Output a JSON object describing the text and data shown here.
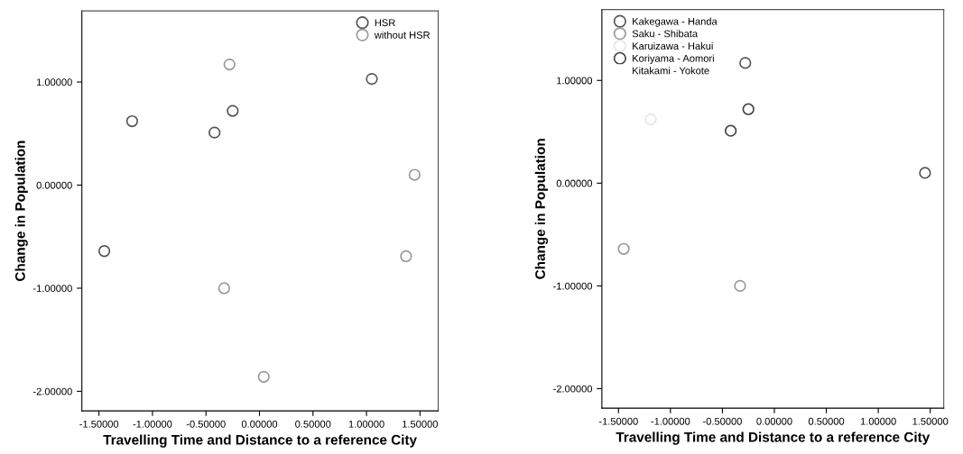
{
  "chart_data": [
    {
      "type": "scatter",
      "xlabel": "Travelling Time and Distance to a reference City",
      "ylabel": "Change in Population",
      "xlim": [
        -1.66,
        1.67
      ],
      "ylim": [
        -2.19,
        1.69
      ],
      "xticks": [
        {
          "value": -1.5,
          "label": "-1.50000"
        },
        {
          "value": -1.0,
          "label": "-1.00000"
        },
        {
          "value": -0.5,
          "label": "-0.50000"
        },
        {
          "value": 0,
          "label": "0.00000"
        },
        {
          "value": 0.5,
          "label": "0.50000"
        },
        {
          "value": 1.0,
          "label": "1.00000"
        },
        {
          "value": 1.5,
          "label": "1.50000"
        }
      ],
      "yticks": [
        {
          "value": -2.0,
          "label": "-2.00000"
        },
        {
          "value": -1.0,
          "label": "-1.00000"
        },
        {
          "value": 0,
          "label": "0.00000"
        },
        {
          "value": 1.0,
          "label": "1.00000"
        }
      ],
      "marker": "circle",
      "grid": false,
      "legend": "top right",
      "series": [
        {
          "name": "HSR",
          "color": "#555555",
          "x": [
            -1.19,
            -0.42,
            -0.25,
            1.05,
            -1.45
          ],
          "values": [
            0.62,
            0.51,
            0.72,
            1.03,
            -0.64
          ]
        },
        {
          "name": "without HSR",
          "color": "#999999",
          "x": [
            -0.28,
            1.45,
            1.37,
            -0.33,
            0.04
          ],
          "values": [
            1.17,
            0.1,
            -0.69,
            -1.0,
            -1.86
          ]
        }
      ]
    },
    {
      "type": "scatter",
      "xlabel": "Travelling Time and Distance to a reference City",
      "ylabel": "Change in Population",
      "xlim": [
        -1.66,
        1.63
      ],
      "ylim": [
        -2.19,
        1.69
      ],
      "xticks": [
        {
          "value": -1.5,
          "label": "-1.50000"
        },
        {
          "value": -1.0,
          "label": "-1.00000"
        },
        {
          "value": -0.5,
          "label": "-0.50000"
        },
        {
          "value": 0,
          "label": "0.00000"
        },
        {
          "value": 0.5,
          "label": "0.50000"
        },
        {
          "value": 1.0,
          "label": "1.00000"
        },
        {
          "value": 1.5,
          "label": "1.50000"
        }
      ],
      "yticks": [
        {
          "value": -2.0,
          "label": "-2.00000"
        },
        {
          "value": -1.0,
          "label": "-1.00000"
        },
        {
          "value": 0,
          "label": "0.00000"
        },
        {
          "value": 1.0,
          "label": "1.00000"
        }
      ],
      "marker": "circle",
      "grid": false,
      "legend": "top left",
      "series": [
        {
          "name": "Kakegawa - Handa",
          "color": "#555555",
          "x": [
            -0.28,
            1.45
          ],
          "values": [
            1.17,
            0.1
          ]
        },
        {
          "name": "Saku - Shibata",
          "color": "#999999",
          "x": [
            -1.45,
            -0.33
          ],
          "values": [
            -0.64,
            -1.0
          ]
        },
        {
          "name": "Karuizawa - Hakui",
          "color": "#e6e6e6",
          "x": [
            -1.19
          ],
          "values": [
            0.62
          ]
        },
        {
          "name": "Koriyama - Aomori",
          "color": "#444444",
          "x": [
            -0.42,
            -0.25
          ],
          "values": [
            0.51,
            0.72
          ]
        },
        {
          "name": "Kitakami - Yokote",
          "color": "#ffffff"
        }
      ]
    }
  ]
}
